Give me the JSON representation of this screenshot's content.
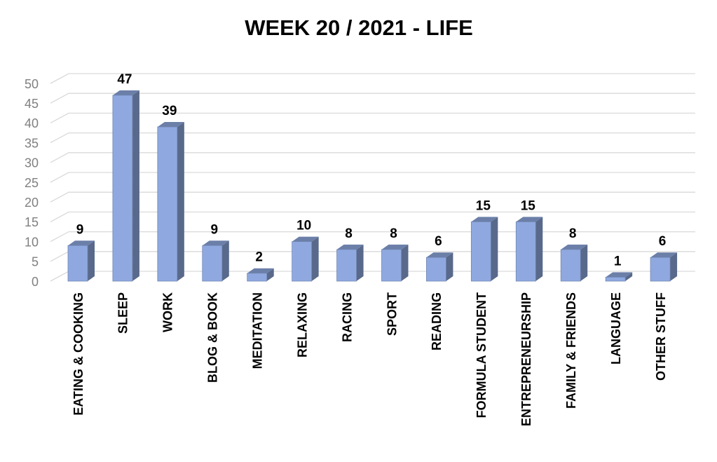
{
  "chart_data": {
    "type": "bar3d",
    "title": "WEEK 20 / 2021 - LIFE",
    "categories": [
      "EATING & COOKING",
      "SLEEP",
      "WORK",
      "BLOG & BOOK",
      "MEDITATION",
      "RELAXING",
      "RACING",
      "SPORT",
      "READING",
      "FORMULA STUDENT",
      "ENTREPRENEURSHIP",
      "FAMILY & FRIENDS",
      "LANGUAGE",
      "OTHER STUFF"
    ],
    "values": [
      9,
      47,
      39,
      9,
      2,
      10,
      8,
      8,
      6,
      15,
      15,
      8,
      1,
      6
    ],
    "color": "#8fa9e0",
    "ylim": [
      0,
      50
    ],
    "yticks": [
      0,
      5,
      10,
      15,
      20,
      25,
      30,
      35,
      40,
      45,
      50
    ],
    "grid": true
  }
}
